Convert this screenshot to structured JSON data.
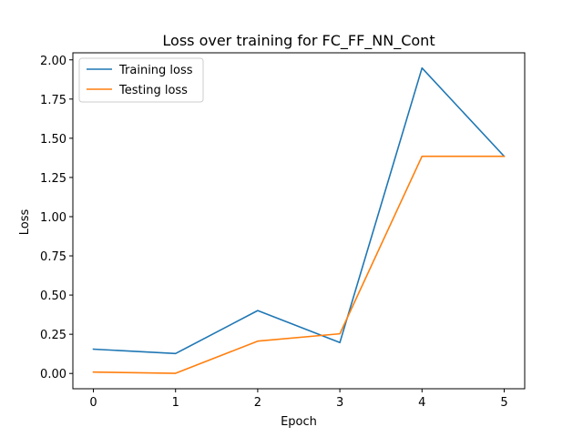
{
  "chart_data": {
    "type": "line",
    "title": "Loss over training for FC_FF_NN_Cont",
    "xlabel": "Epoch",
    "ylabel": "Loss",
    "x": [
      0,
      1,
      2,
      3,
      4,
      5
    ],
    "xlim": [
      -0.25,
      5.25
    ],
    "ylim": [
      -0.0975,
      2.045
    ],
    "xticks": [
      "0",
      "1",
      "2",
      "3",
      "4",
      "5"
    ],
    "yticks": [
      "0.00",
      "0.25",
      "0.50",
      "0.75",
      "1.00",
      "1.25",
      "1.50",
      "1.75",
      "2.00"
    ],
    "grid": false,
    "legend_position": "upper-left",
    "series": [
      {
        "name": "Training loss",
        "color": "#1f77b4",
        "values": [
          0.155,
          0.127,
          0.401,
          0.197,
          1.948,
          1.385
        ]
      },
      {
        "name": "Testing loss",
        "color": "#ff7f0e",
        "values": [
          0.009,
          0.001,
          0.206,
          0.253,
          1.385,
          1.385
        ]
      }
    ]
  }
}
